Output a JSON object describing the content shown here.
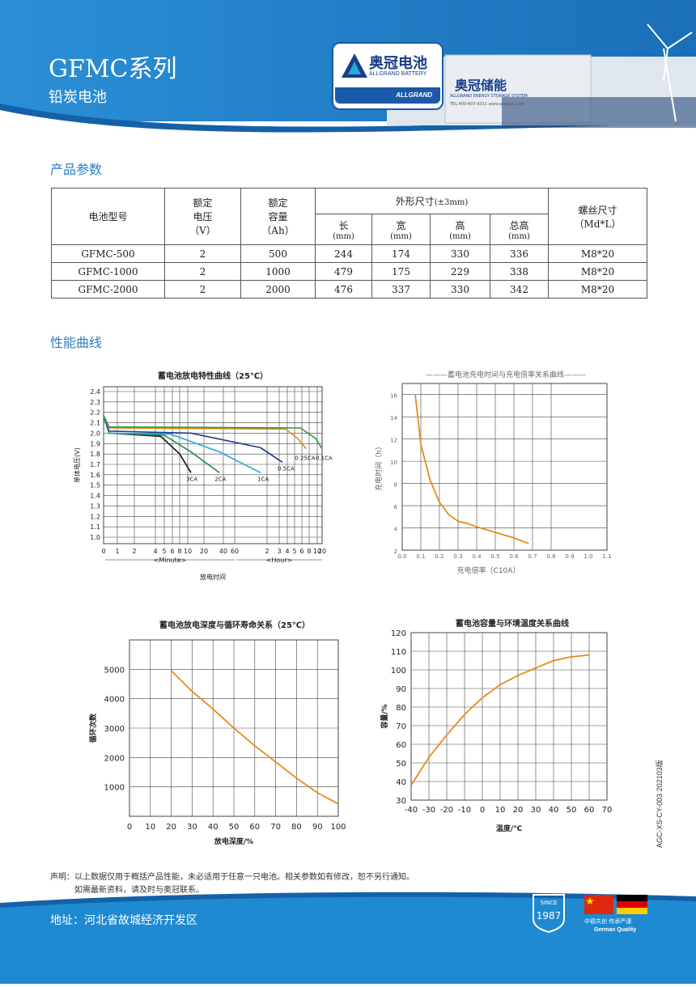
{
  "header": {
    "title": "GFMC系列",
    "subtitle": "铅炭电池",
    "logo_cn": "奥冠电池",
    "logo_en": "ALLGRAND BATTERY",
    "logo_bar": "ALLGRAND",
    "container_logo": "奥冠储能",
    "container_sub": "ALLGRAND ENERGY STORAGE SYSTEM",
    "container_tel": "TEL:400-607-9311  www.aoguan.com"
  },
  "sections": {
    "params": "产品参数",
    "curves": "性能曲线"
  },
  "table": {
    "h_model": "电池型号",
    "h_voltage": [
      "额定",
      "电压",
      "（V）"
    ],
    "h_capacity": [
      "额定",
      "容量",
      "（Ah）"
    ],
    "h_dims": "外形尺寸",
    "h_dims_tol": "(±3mm)",
    "h_len": "长",
    "h_wid": "宽",
    "h_hei": "高",
    "h_total": "总高",
    "h_unit": "(mm)",
    "h_thread": "螺丝尺寸",
    "h_thread_unit": "（Md*L）",
    "rows": [
      {
        "model": "GFMC-500",
        "v": "2",
        "cap": "500",
        "l": "244",
        "w": "174",
        "h": "330",
        "th": "336",
        "thread": "M8*20"
      },
      {
        "model": "GFMC-1000",
        "v": "2",
        "cap": "1000",
        "l": "479",
        "w": "175",
        "h": "229",
        "th": "338",
        "thread": "M8*20"
      },
      {
        "model": "GFMC-2000",
        "v": "2",
        "cap": "2000",
        "l": "476",
        "w": "337",
        "h": "330",
        "th": "342",
        "thread": "M8*20"
      }
    ]
  },
  "chart_data": [
    {
      "type": "line",
      "title": "蓄电池放电特性曲线（25℃）",
      "ylabel": "单体电压(V)",
      "xlabel": "放电时间",
      "x_group_labels": [
        "<Minute>",
        "<Hour>"
      ],
      "ylim": [
        1.0,
        2.4
      ],
      "yticks": [
        "2.4",
        "2.3",
        "2.2",
        "2.1",
        "2.0",
        "1.9",
        "1.8",
        "1.7",
        "1.6",
        "1.5",
        "1.4",
        "1.3",
        "1.2",
        "1.1",
        "1.0"
      ],
      "xticks": [
        "0",
        "1",
        "2",
        "4",
        "5",
        "6",
        "8",
        "10",
        "20",
        "40",
        "60",
        "2",
        "3",
        "4",
        "5",
        "6",
        "8",
        "10",
        "20"
      ],
      "series": [
        {
          "name": "3CA",
          "color": "#111111",
          "points": [
            [
              0,
              2.17
            ],
            [
              1,
              2.0
            ],
            [
              9,
              1.97
            ],
            [
              15,
              1.8
            ],
            [
              18,
              1.62
            ]
          ]
        },
        {
          "name": "2CA",
          "color": "#2a8a4a",
          "points": [
            [
              0,
              2.17
            ],
            [
              1,
              2.0
            ],
            [
              10,
              1.98
            ],
            [
              18,
              1.82
            ],
            [
              22,
              1.62
            ]
          ]
        },
        {
          "name": "1CA",
          "color": "#2aa8d8",
          "points": [
            [
              0,
              2.17
            ],
            [
              1,
              2.0
            ],
            [
              12,
              1.99
            ],
            [
              22,
              1.82
            ],
            [
              27,
              1.62
            ]
          ]
        },
        {
          "name": "0.5CA",
          "color": "#1e3a8a",
          "points": [
            [
              0,
              2.17
            ],
            [
              1,
              2.02
            ],
            [
              18,
              2.0
            ],
            [
              27,
              1.86
            ],
            [
              31,
              1.72
            ]
          ]
        },
        {
          "name": "0.25CA",
          "color": "#e88a1a",
          "points": [
            [
              0,
              2.17
            ],
            [
              1,
              2.05
            ],
            [
              32,
              2.04
            ],
            [
              36,
              1.95
            ],
            [
              39,
              1.85
            ]
          ]
        },
        {
          "name": "0.1CA",
          "color": "#2a9a4a",
          "points": [
            [
              0,
              2.17
            ],
            [
              1,
              2.06
            ],
            [
              37,
              2.05
            ],
            [
              42,
              1.95
            ],
            [
              45,
              1.85
            ]
          ]
        }
      ]
    },
    {
      "type": "line",
      "title": "———蓄电池充电时间与充电倍率关系曲线———",
      "xlabel": "充电倍率（C10A）",
      "ylabel": "充电时间（h）",
      "xlim": [
        0,
        1.1
      ],
      "ylim": [
        2,
        17
      ],
      "xticks": [
        "0.0",
        "0.1",
        "0.2",
        "0.3",
        "0.4",
        "0.5",
        "0.6",
        "0.7",
        "0.8",
        "0.9",
        "1.0",
        "1.1"
      ],
      "yticks": [
        "16",
        "14",
        "12",
        "10",
        "8",
        "6",
        "4",
        "2"
      ],
      "series": [
        {
          "color": "#e88a1a",
          "x": [
            0.07,
            0.1,
            0.15,
            0.2,
            0.25,
            0.3,
            0.35,
            0.4,
            0.5,
            0.6,
            0.68
          ],
          "y": [
            16,
            11.5,
            8.3,
            6.3,
            5.2,
            4.6,
            4.4,
            4.1,
            3.6,
            3.1,
            2.6
          ]
        }
      ]
    },
    {
      "type": "line",
      "title": "蓄电池放电深度与循环寿命关系（25℃）",
      "xlabel": "放电深度/%",
      "ylabel": "循环次数",
      "xlim": [
        0,
        100
      ],
      "ylim": [
        0,
        6000
      ],
      "xticks": [
        "0",
        "10",
        "20",
        "30",
        "40",
        "50",
        "60",
        "70",
        "80",
        "90",
        "100"
      ],
      "yticks": [
        "5000",
        "4000",
        "3000",
        "2000",
        "1000"
      ],
      "series": [
        {
          "color": "#e88a1a",
          "x": [
            20,
            30,
            40,
            50,
            60,
            70,
            80,
            90,
            100
          ],
          "y": [
            4950,
            4250,
            3650,
            3000,
            2400,
            1850,
            1300,
            800,
            420
          ]
        }
      ]
    },
    {
      "type": "line",
      "title": "蓄电池容量与环境温度关系曲线",
      "xlabel": "温度/℃",
      "ylabel": "容量/%",
      "xlim": [
        -40,
        70
      ],
      "ylim": [
        30,
        120
      ],
      "xticks": [
        "-40",
        "-30",
        "-20",
        "-10",
        "0",
        "10",
        "20",
        "30",
        "40",
        "50",
        "60",
        "70"
      ],
      "yticks": [
        "120",
        "110",
        "100",
        "90",
        "80",
        "70",
        "60",
        "50",
        "40",
        "30"
      ],
      "series": [
        {
          "color": "#e88a1a",
          "x": [
            -40,
            -30,
            -20,
            -10,
            0,
            10,
            20,
            30,
            40,
            50,
            60
          ],
          "y": [
            38,
            53,
            65,
            76,
            85,
            92,
            97,
            101,
            105,
            107,
            108
          ]
        }
      ]
    }
  ],
  "footer": {
    "note1": "声明：以上数据仅用于概括产品性能，未必适用于任意一只电池。相关参数如有修改，恕不另行通知。",
    "note2": "如需最新资料，请及时与奥冠联系。",
    "address": "地址：河北省故城经济开发区",
    "since": "SINCE",
    "year": "1987",
    "flag_caption": "中德共创    传承严谨",
    "flag_caption2": "German Quality",
    "side_code": "AGC-XS-CY-003 202103版"
  },
  "colors": {
    "brand_blue": "#1f8ad2",
    "accent": "#e88a1a",
    "section": "#2d7cc2"
  }
}
